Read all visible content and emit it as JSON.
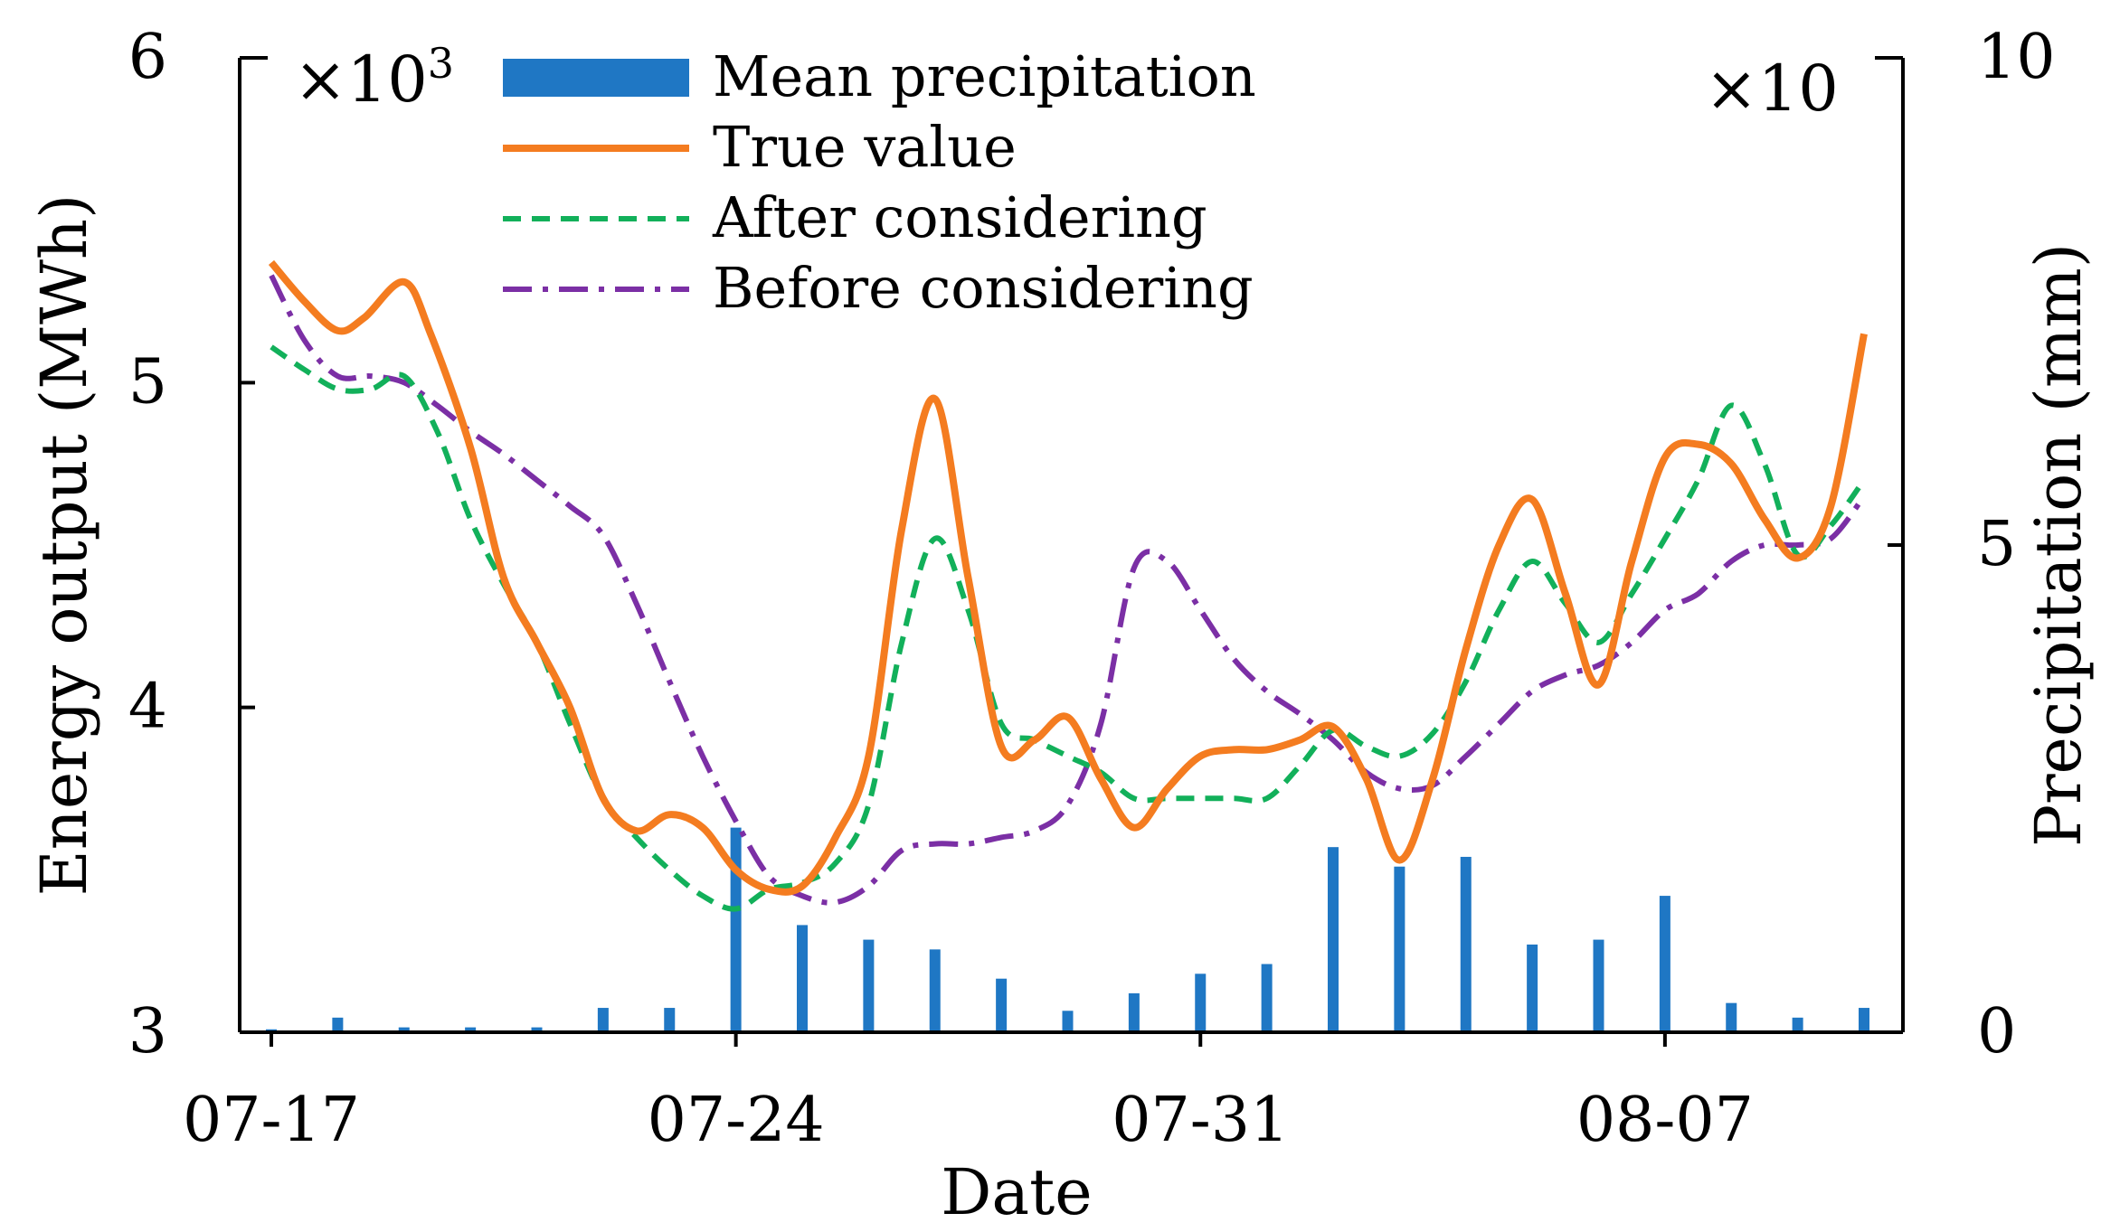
{
  "chart_data": {
    "type": "bar+line",
    "xlabel": "Date",
    "ylabel_left": "Energy output (MWh)",
    "ylabel_right": "Precipitation (mm)",
    "left_multiplier": {
      "base": "×10",
      "exp": "3"
    },
    "right_multiplier": "×10",
    "ylim_left": [
      3,
      6
    ],
    "ylim_right": [
      0,
      10
    ],
    "left_ticks": [
      "3",
      "4",
      "5",
      "6"
    ],
    "right_ticks": [
      "0",
      "5",
      "10"
    ],
    "x_tick_labels": [
      "07-17",
      "07-24",
      "07-31",
      "08-07"
    ],
    "x_tick_days": [
      0,
      7,
      14,
      21
    ],
    "x_days": [
      0,
      1,
      2,
      3,
      4,
      5,
      6,
      7,
      8,
      9,
      10,
      11,
      12,
      13,
      14,
      15,
      16,
      17,
      18,
      19,
      20,
      21,
      22,
      23,
      24
    ],
    "series": [
      {
        "name": "Mean precipitation",
        "kind": "bar",
        "color": "#1f77c4",
        "values": [
          0.03,
          0.15,
          0.05,
          0.05,
          0.05,
          0.25,
          0.25,
          2.1,
          1.1,
          0.95,
          0.85,
          0.55,
          0.22,
          0.4,
          0.6,
          0.7,
          1.9,
          1.7,
          1.8,
          0.9,
          0.95,
          1.4,
          0.3,
          0.15,
          0.25
        ]
      },
      {
        "name": "True value",
        "kind": "line",
        "style": "solid",
        "color": "#f47c20",
        "x": [
          0,
          0.5,
          1,
          1.4,
          2,
          2.4,
          3,
          3.5,
          4,
          4.5,
          5,
          5.5,
          6,
          6.5,
          7,
          7.5,
          8,
          8.5,
          9,
          9.5,
          10,
          10.5,
          11,
          11.5,
          12,
          12.5,
          13,
          13.5,
          14,
          14.5,
          15,
          15.5,
          16,
          16.5,
          17,
          17.5,
          18,
          18.5,
          19,
          19.5,
          20,
          20.5,
          21,
          21.5,
          22,
          22.5,
          23,
          23.5,
          24
        ],
        "y": [
          5.37,
          5.25,
          5.16,
          5.2,
          5.31,
          5.15,
          4.8,
          4.4,
          4.2,
          4.0,
          3.72,
          3.62,
          3.67,
          3.63,
          3.5,
          3.44,
          3.45,
          3.6,
          3.85,
          4.55,
          4.95,
          4.4,
          3.88,
          3.9,
          3.97,
          3.78,
          3.63,
          3.75,
          3.85,
          3.87,
          3.87,
          3.9,
          3.94,
          3.78,
          3.53,
          3.78,
          4.18,
          4.5,
          4.64,
          4.35,
          4.07,
          4.45,
          4.77,
          4.81,
          4.75,
          4.58,
          4.46,
          4.62,
          5.15
        ]
      },
      {
        "name": "After considering",
        "kind": "line",
        "style": "dashed",
        "color": "#12b05a",
        "x": [
          0,
          0.5,
          1,
          1.5,
          2,
          2.5,
          3,
          3.5,
          4,
          4.5,
          5,
          5.5,
          6,
          6.5,
          7,
          7.5,
          8,
          8.5,
          9,
          9.5,
          10,
          10.5,
          11,
          11.5,
          12,
          12.5,
          13,
          13.5,
          14,
          14.5,
          15,
          15.5,
          16,
          16.5,
          17,
          17.5,
          18,
          18.5,
          19,
          19.5,
          20,
          20.5,
          21,
          21.5,
          22,
          22.5,
          23,
          23.5,
          24
        ],
        "y": [
          5.11,
          5.04,
          4.98,
          4.98,
          5.02,
          4.85,
          4.58,
          4.38,
          4.2,
          3.95,
          3.72,
          3.6,
          3.5,
          3.42,
          3.38,
          3.44,
          3.46,
          3.52,
          3.7,
          4.2,
          4.52,
          4.3,
          3.95,
          3.9,
          3.85,
          3.8,
          3.72,
          3.72,
          3.72,
          3.72,
          3.72,
          3.82,
          3.93,
          3.88,
          3.85,
          3.92,
          4.08,
          4.3,
          4.45,
          4.32,
          4.2,
          4.35,
          4.52,
          4.7,
          4.93,
          4.75,
          4.47,
          4.56,
          4.7
        ]
      },
      {
        "name": "Before considering",
        "kind": "line",
        "style": "dashdot",
        "color": "#7b2fa5",
        "x": [
          0,
          0.5,
          1,
          1.5,
          2,
          2.5,
          3,
          3.5,
          4,
          4.5,
          5,
          5.5,
          6,
          6.5,
          7,
          7.5,
          8,
          8.5,
          9,
          9.5,
          10,
          10.5,
          11,
          11.5,
          12,
          12.5,
          13,
          13.5,
          14,
          14.5,
          15,
          15.5,
          16,
          16.5,
          17,
          17.5,
          18,
          18.5,
          19,
          19.5,
          20,
          20.5,
          21,
          21.5,
          22,
          22.5,
          23,
          23.5,
          24
        ],
        "y": [
          5.33,
          5.13,
          5.02,
          5.02,
          5.0,
          4.93,
          4.85,
          4.78,
          4.7,
          4.62,
          4.53,
          4.32,
          4.08,
          3.85,
          3.65,
          3.48,
          3.42,
          3.4,
          3.45,
          3.56,
          3.58,
          3.58,
          3.6,
          3.62,
          3.7,
          3.95,
          4.43,
          4.45,
          4.3,
          4.15,
          4.05,
          3.98,
          3.9,
          3.8,
          3.75,
          3.76,
          3.85,
          3.95,
          4.05,
          4.1,
          4.13,
          4.2,
          4.3,
          4.35,
          4.45,
          4.5,
          4.5,
          4.52,
          4.65
        ]
      }
    ]
  }
}
